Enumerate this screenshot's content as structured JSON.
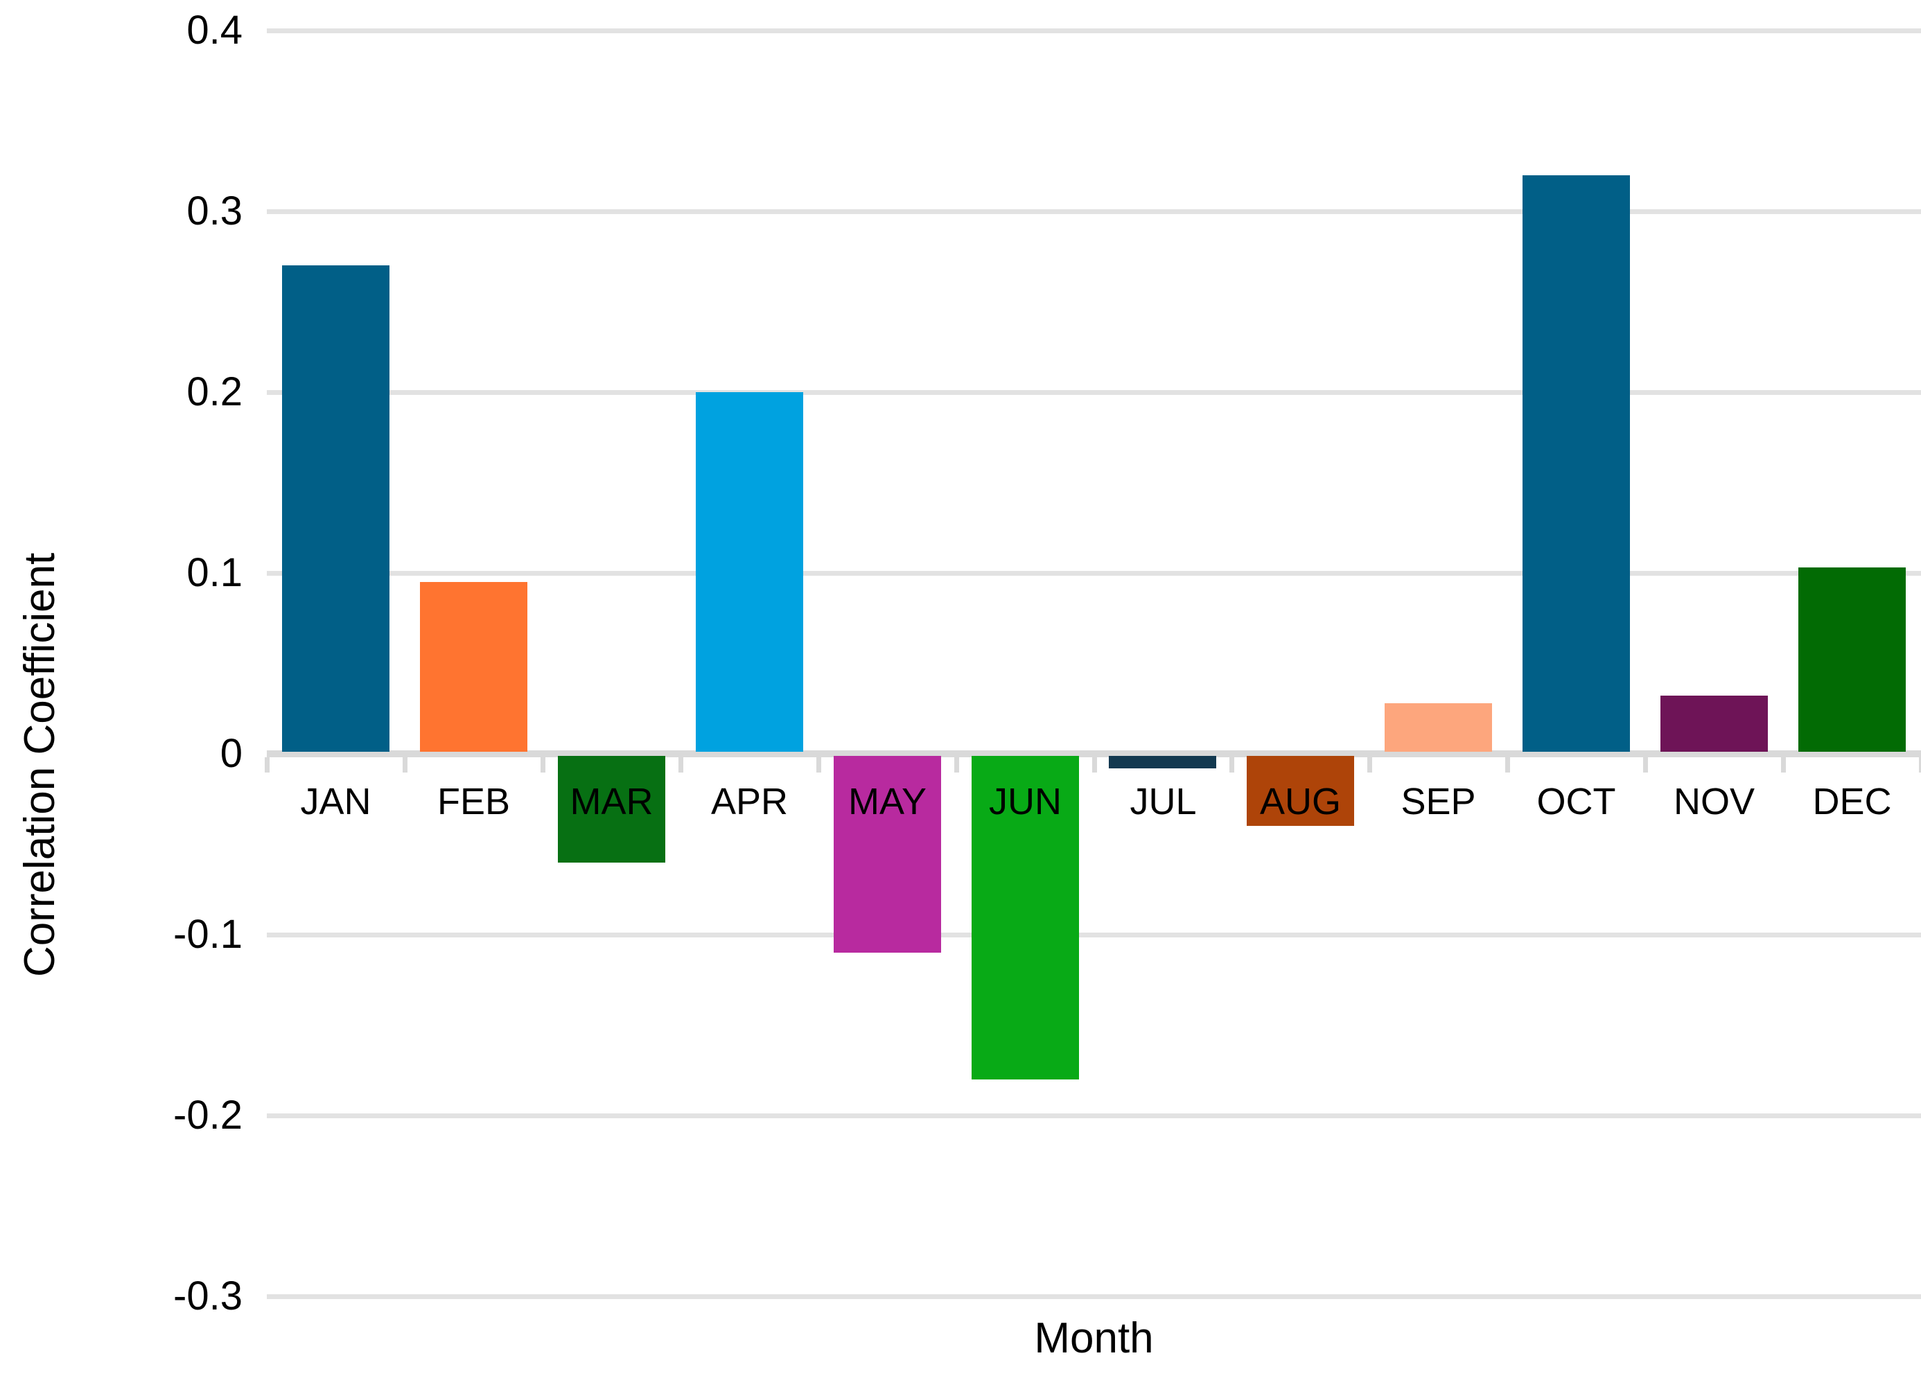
{
  "chart_data": {
    "type": "bar",
    "title": "",
    "xlabel": "Month",
    "ylabel": "Correlation Coefficient",
    "categories": [
      "JAN",
      "FEB",
      "MAR",
      "APR",
      "MAY",
      "JUN",
      "JUL",
      "AUG",
      "SEP",
      "OCT",
      "NOV",
      "DEC"
    ],
    "values": [
      0.27,
      0.095,
      -0.06,
      0.2,
      -0.11,
      -0.18,
      -0.008,
      -0.04,
      0.028,
      0.32,
      0.032,
      0.103
    ],
    "bar_colors": [
      "#015f87",
      "#ff7430",
      "#077013",
      "#00a2e0",
      "#b82a9f",
      "#08aa16",
      "#133950",
      "#ae4409",
      "#fda67d",
      "#015f87",
      "#6e1457",
      "#026b04"
    ],
    "y_ticks": [
      "0.4",
      "0.3",
      "0.2",
      "0.1",
      "0",
      "-0.1",
      "-0.2",
      "-0.3"
    ],
    "y_tick_values": [
      0.4,
      0.3,
      0.2,
      0.1,
      0,
      -0.1,
      -0.2,
      -0.3
    ],
    "ylim": [
      -0.3,
      0.4
    ],
    "grid": "horizontal",
    "legend": "none",
    "gridline_color": "#e2e2e2",
    "axis_line_color": "#d9d9d9",
    "text_color": "#000000",
    "background_color": "#ffffff"
  }
}
